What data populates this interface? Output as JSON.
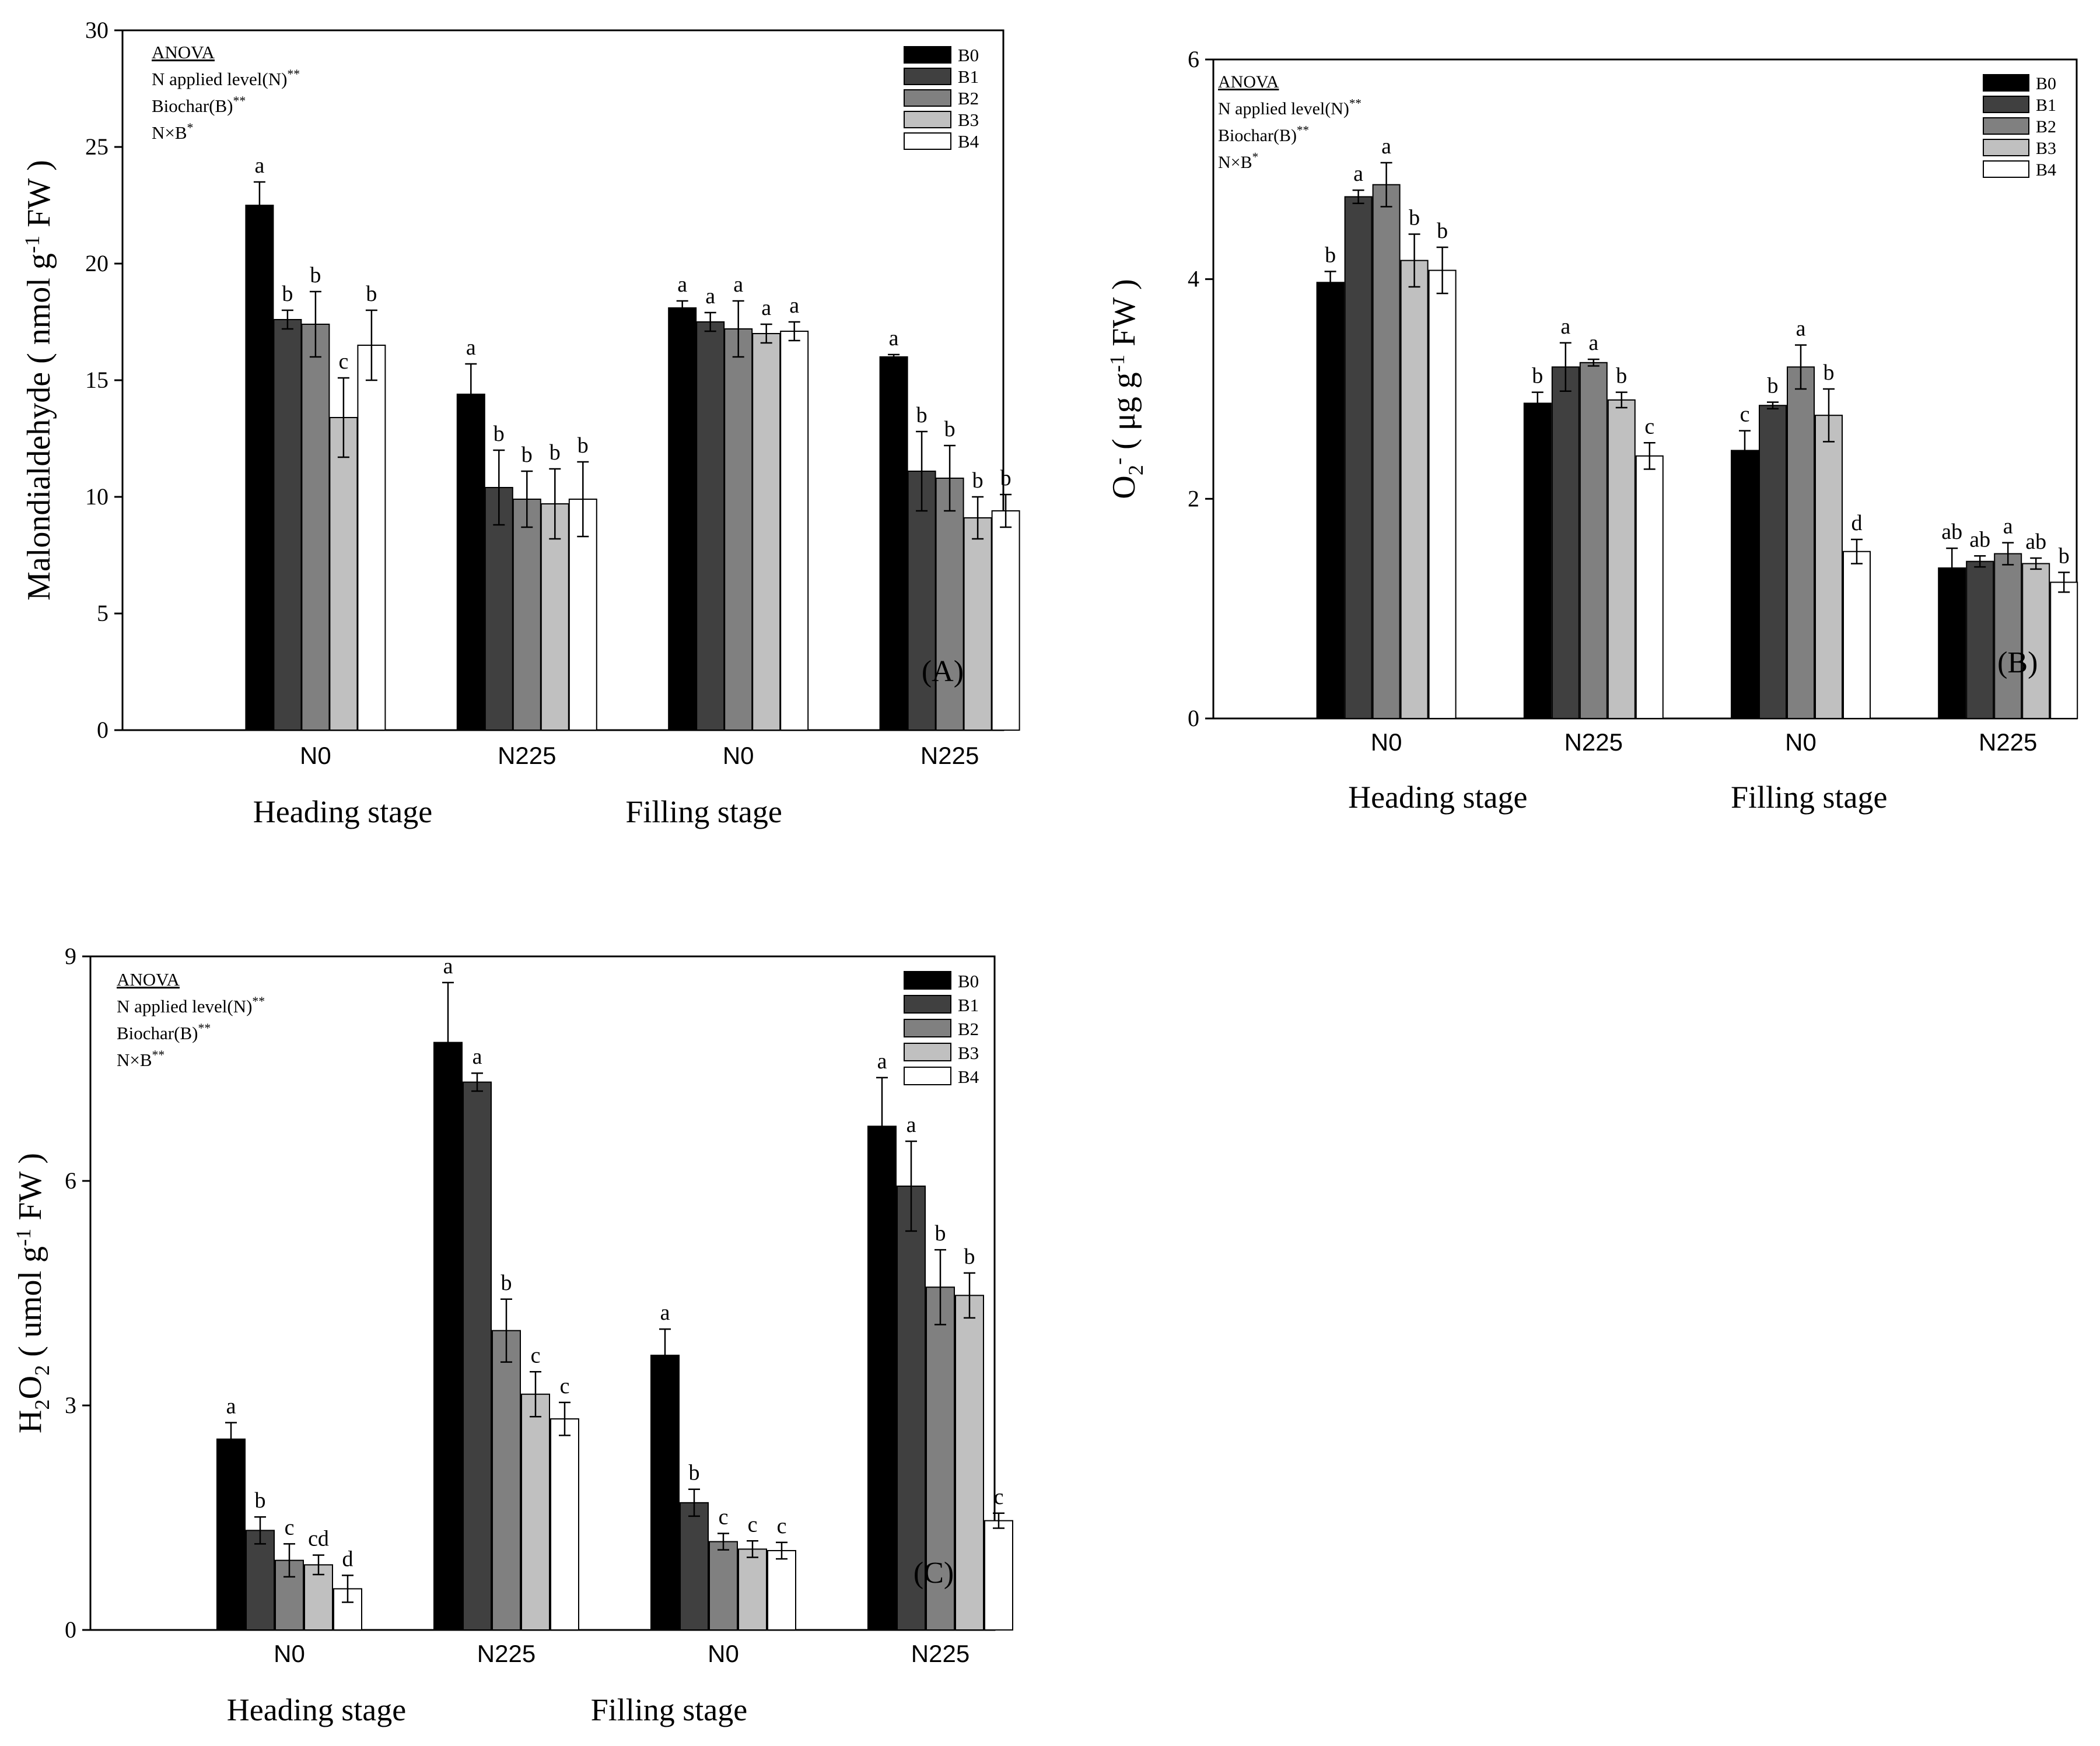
{
  "chart_data": [
    {
      "type": "bar",
      "panel_label": "(A)",
      "ylabel": "Malondialdehyde ( nmol g-1 FW )",
      "ylabel_parts": {
        "main": "Malondialdehyde ( nmol g",
        "sup": "-1",
        "tail": " FW )"
      },
      "ylim": [
        0,
        30
      ],
      "yticks": [
        0,
        5,
        10,
        15,
        20,
        25,
        30
      ],
      "categories": [
        "N0",
        "N225",
        "N0",
        "N225"
      ],
      "stages": [
        "Heading stage",
        "Filling stage"
      ],
      "anova": {
        "title": "ANOVA",
        "lines": [
          {
            "text": "N applied level(N)",
            "sup": "**"
          },
          {
            "text": "Biochar(B)",
            "sup": "**"
          },
          {
            "text": "N×B",
            "sup": "*"
          }
        ]
      },
      "series": [
        {
          "name": "B0",
          "color": "#000000",
          "values": [
            22.5,
            14.4,
            18.1,
            16.0
          ],
          "errors": [
            1.0,
            1.3,
            0.3,
            0.1
          ],
          "letters": [
            "a",
            "a",
            "a",
            "a"
          ]
        },
        {
          "name": "B1",
          "color": "#404040",
          "values": [
            17.6,
            10.4,
            17.5,
            11.1
          ],
          "errors": [
            0.4,
            1.6,
            0.4,
            1.7
          ],
          "letters": [
            "b",
            "b",
            "a",
            "b"
          ]
        },
        {
          "name": "B2",
          "color": "#808080",
          "values": [
            17.4,
            9.9,
            17.2,
            10.8
          ],
          "errors": [
            1.4,
            1.2,
            1.2,
            1.4
          ],
          "letters": [
            "b",
            "b",
            "a",
            "b"
          ]
        },
        {
          "name": "B3",
          "color": "#c0c0c0",
          "values": [
            13.4,
            9.7,
            17.0,
            9.1
          ],
          "errors": [
            1.7,
            1.5,
            0.4,
            0.9
          ],
          "letters": [
            "c",
            "b",
            "a",
            "b"
          ]
        },
        {
          "name": "B4",
          "color": "#ffffff",
          "values": [
            16.5,
            9.9,
            17.1,
            9.4
          ],
          "errors": [
            1.5,
            1.6,
            0.4,
            0.7
          ],
          "letters": [
            "b",
            "b",
            "a",
            "b"
          ]
        }
      ]
    },
    {
      "type": "bar",
      "panel_label": "(B)",
      "ylabel": "O2- ( μg g-1 FW )",
      "ylabel_parts": {
        "base": "O",
        "sub": "2",
        "sup1": "-",
        "main": " ( μg g",
        "sup": "-1",
        "tail": " FW )"
      },
      "ylim": [
        0,
        6
      ],
      "yticks": [
        0,
        2,
        4,
        6
      ],
      "categories": [
        "N0",
        "N225",
        "N0",
        "N225"
      ],
      "stages": [
        "Heading stage",
        "Filling stage"
      ],
      "anova": {
        "title": "ANOVA",
        "lines": [
          {
            "text": "N applied level(N)",
            "sup": "**"
          },
          {
            "text": "Biochar(B)",
            "sup": "**"
          },
          {
            "text": "N×B",
            "sup": "*"
          }
        ]
      },
      "series": [
        {
          "name": "B0",
          "color": "#000000",
          "values": [
            3.97,
            2.87,
            2.44,
            1.37
          ],
          "errors": [
            0.1,
            0.1,
            0.18,
            0.18
          ],
          "letters": [
            "b",
            "b",
            "c",
            "ab"
          ]
        },
        {
          "name": "B1",
          "color": "#404040",
          "values": [
            4.75,
            3.2,
            2.85,
            1.43
          ],
          "errors": [
            0.06,
            0.22,
            0.03,
            0.05
          ],
          "letters": [
            "a",
            "a",
            "b",
            "ab"
          ]
        },
        {
          "name": "B2",
          "color": "#808080",
          "values": [
            4.86,
            3.24,
            3.2,
            1.5
          ],
          "errors": [
            0.2,
            0.03,
            0.2,
            0.1
          ],
          "letters": [
            "a",
            "a",
            "a",
            "a"
          ]
        },
        {
          "name": "B3",
          "color": "#c0c0c0",
          "values": [
            4.17,
            2.9,
            2.76,
            1.41
          ],
          "errors": [
            0.24,
            0.07,
            0.24,
            0.05
          ],
          "letters": [
            "b",
            "b",
            "b",
            "ab"
          ]
        },
        {
          "name": "B4",
          "color": "#ffffff",
          "values": [
            4.08,
            2.39,
            1.52,
            1.24
          ],
          "errors": [
            0.21,
            0.12,
            0.11,
            0.09
          ],
          "letters": [
            "b",
            "c",
            "d",
            "b"
          ]
        }
      ]
    },
    {
      "type": "bar",
      "panel_label": "(C)",
      "ylabel": "H2O2 ( umol g-1 FW )",
      "ylabel_parts": {
        "base": "H",
        "sub": "2",
        "base2": "O",
        "sub2": "2",
        "main": " ( umol g",
        "sup": "-1",
        "tail": " FW )"
      },
      "ylim": [
        0,
        9
      ],
      "yticks": [
        0,
        3,
        6,
        9
      ],
      "categories": [
        "N0",
        "N225",
        "N0",
        "N225"
      ],
      "stages": [
        "Heading stage",
        "Filling stage"
      ],
      "anova": {
        "title": "ANOVA",
        "lines": [
          {
            "text": "N applied level(N)",
            "sup": "**"
          },
          {
            "text": "Biochar(B)",
            "sup": "**"
          },
          {
            "text": "N×B",
            "sup": "**"
          }
        ]
      },
      "series": [
        {
          "name": "B0",
          "color": "#000000",
          "values": [
            2.55,
            7.85,
            3.67,
            6.73
          ],
          "errors": [
            0.22,
            0.8,
            0.35,
            0.65
          ],
          "letters": [
            "a",
            "a",
            "a",
            "a"
          ]
        },
        {
          "name": "B1",
          "color": "#404040",
          "values": [
            1.33,
            7.32,
            1.7,
            5.93
          ],
          "errors": [
            0.18,
            0.12,
            0.18,
            0.6
          ],
          "letters": [
            "b",
            "a",
            "b",
            "a"
          ]
        },
        {
          "name": "B2",
          "color": "#808080",
          "values": [
            0.93,
            4.0,
            1.18,
            4.58
          ],
          "errors": [
            0.22,
            0.42,
            0.11,
            0.5
          ],
          "letters": [
            "c",
            "b",
            "c",
            "b"
          ]
        },
        {
          "name": "B3",
          "color": "#c0c0c0",
          "values": [
            0.87,
            3.15,
            1.08,
            4.47
          ],
          "errors": [
            0.13,
            0.3,
            0.11,
            0.3
          ],
          "letters": [
            "cd",
            "c",
            "c",
            "b"
          ]
        },
        {
          "name": "B4",
          "color": "#ffffff",
          "values": [
            0.55,
            2.82,
            1.06,
            1.46
          ],
          "errors": [
            0.18,
            0.22,
            0.11,
            0.1
          ],
          "letters": [
            "d",
            "c",
            "c",
            "c"
          ]
        }
      ]
    }
  ]
}
